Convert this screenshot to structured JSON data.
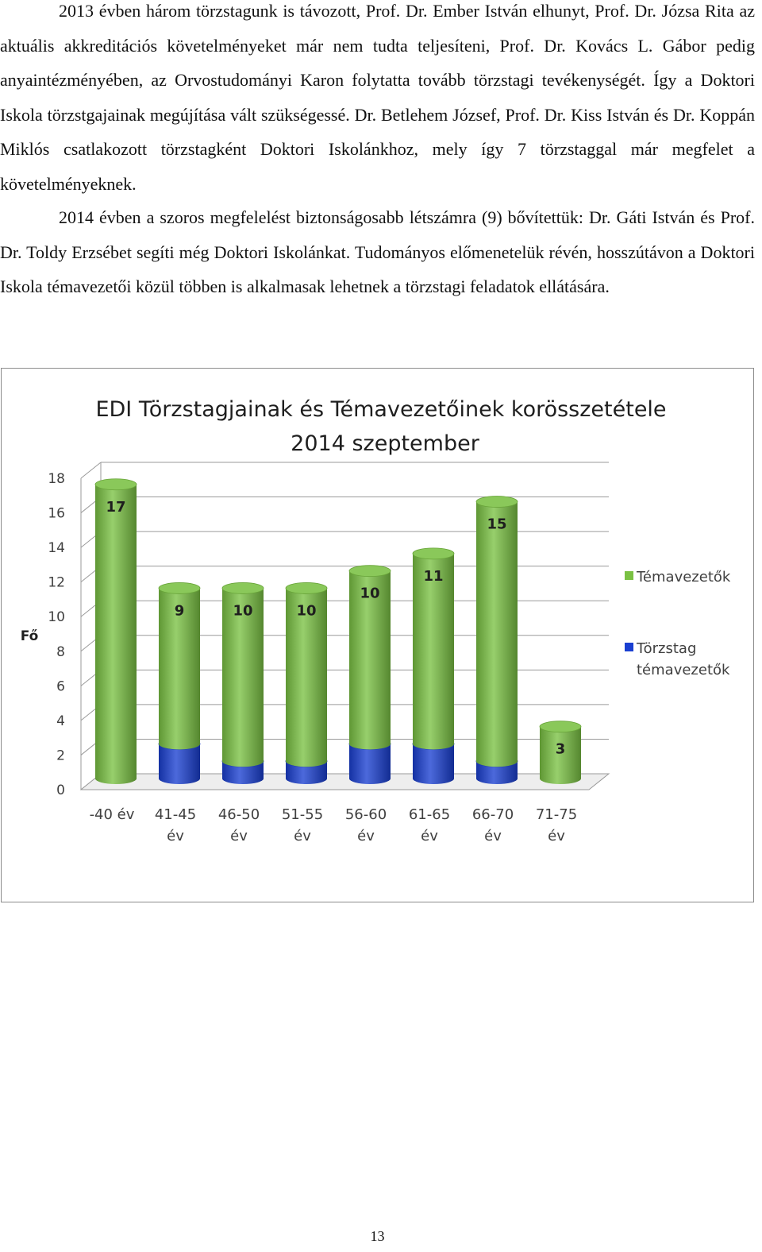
{
  "paragraphs": [
    "2013 évben három törzstagunk is távozott, Prof. Dr. Ember István elhunyt, Prof. Dr. Józsa Rita az aktuális akkreditációs követelményeket már nem tudta teljesíteni, Prof. Dr. Kovács L. Gábor pedig anyaintézményében, az Orvostudományi Karon folytatta tovább törzstagi tevékenységét. Így a Doktori Iskola törzstgajainak megújítása vált szükségessé. Dr. Betlehem József, Prof. Dr. Kiss István és Dr. Koppán Miklós csatlakozott törzstagként Doktori Iskolánkhoz, mely így 7 törzstaggal már megfelet a követelményeknek.",
    "2014 évben a szoros megfelelést biztonságosabb létszámra (9) bővítettük: Dr. Gáti István és Prof. Dr. Toldy Erzsébet segíti még Doktori Iskolánkat. Tudományos előmenetelük révén, hosszútávon a Doktori Iskola témavezetői közül többen is alkalmasak lehetnek a törzstagi feladatok ellátására."
  ],
  "chart_data": {
    "type": "bar",
    "stacked": true,
    "title": "EDI Törzstagjainak és Témavezetőinek korösszetétele",
    "subtitle": "2014 szeptember",
    "ylabel": "Fő",
    "ylim": [
      0,
      18
    ],
    "yticks": [
      0,
      2,
      4,
      6,
      8,
      10,
      12,
      14,
      16,
      18
    ],
    "categories": [
      "-40 év",
      "41-45 év",
      "46-50 év",
      "51-55 év",
      "56-60 év",
      "61-65 év",
      "66-70 év",
      "71-75 év"
    ],
    "category_lines": [
      [
        "-40 év"
      ],
      [
        "41-45",
        "év"
      ],
      [
        "46-50",
        "év"
      ],
      [
        "51-55",
        "év"
      ],
      [
        "56-60",
        "év"
      ],
      [
        "61-65",
        "év"
      ],
      [
        "66-70",
        "év"
      ],
      [
        "71-75",
        "év"
      ]
    ],
    "series": [
      {
        "name": "Törzstag témavezetők",
        "name_lines": [
          "Törzstag",
          "témavezetők"
        ],
        "color": "#1a3fd1",
        "values": [
          0,
          2,
          1,
          1,
          2,
          2,
          1,
          0
        ]
      },
      {
        "name": "Témavezetők",
        "name_lines": [
          "Témavezetők"
        ],
        "color": "#7ac143",
        "values": [
          17,
          9,
          10,
          10,
          10,
          11,
          15,
          3
        ]
      }
    ],
    "legend_position": "right",
    "grid": true
  },
  "page_number": "13"
}
